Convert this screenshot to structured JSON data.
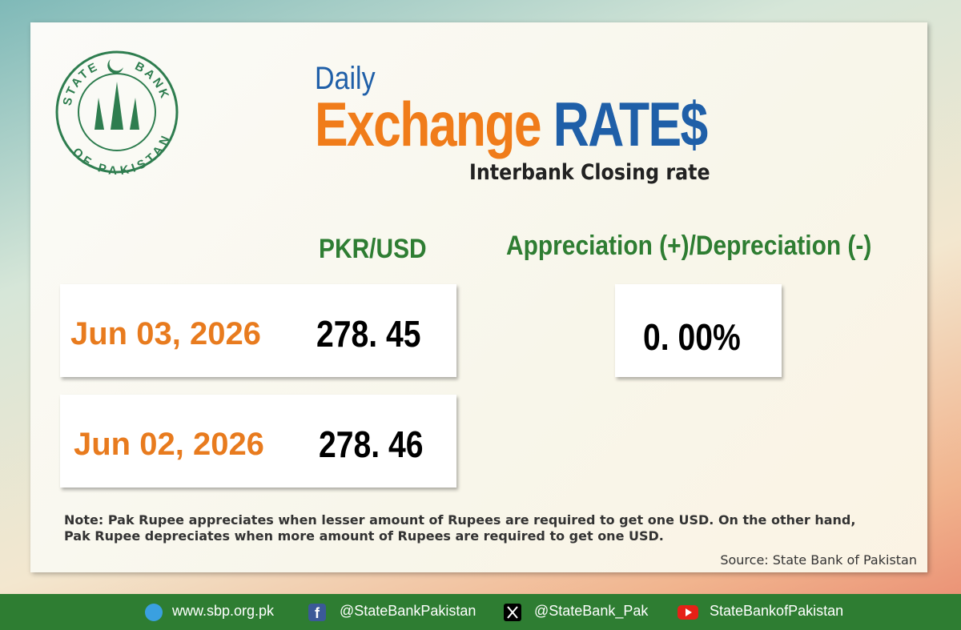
{
  "logo": {
    "top": "STATE",
    "right": "BANK",
    "bottom": "OF PAKISTAN"
  },
  "header": {
    "kicker": "Daily",
    "title_main": "Exchange",
    "title_accent": "RATE$",
    "subtitle": "Interbank Closing rate"
  },
  "columns": {
    "rate": "PKR/USD",
    "change": "Appreciation (+)/Depreciation (-)"
  },
  "rows": [
    {
      "date": "Jun 03, 2026",
      "rate": "278. 45"
    },
    {
      "date": "Jun 02, 2026",
      "rate": "278. 46"
    }
  ],
  "change": "0. 00%",
  "note": "Note: Pak Rupee appreciates when lesser amount of Rupees are required to get one USD.  On the other hand, Pak Rupee depreciates when more amount of Rupees are required to get one USD.",
  "source": "Source: State Bank of Pakistan",
  "footer": {
    "website": "www.sbp.org.pk",
    "facebook": "@StateBankPakistan",
    "x": "@StateBank_Pak",
    "youtube": "StateBankofPakistan"
  }
}
